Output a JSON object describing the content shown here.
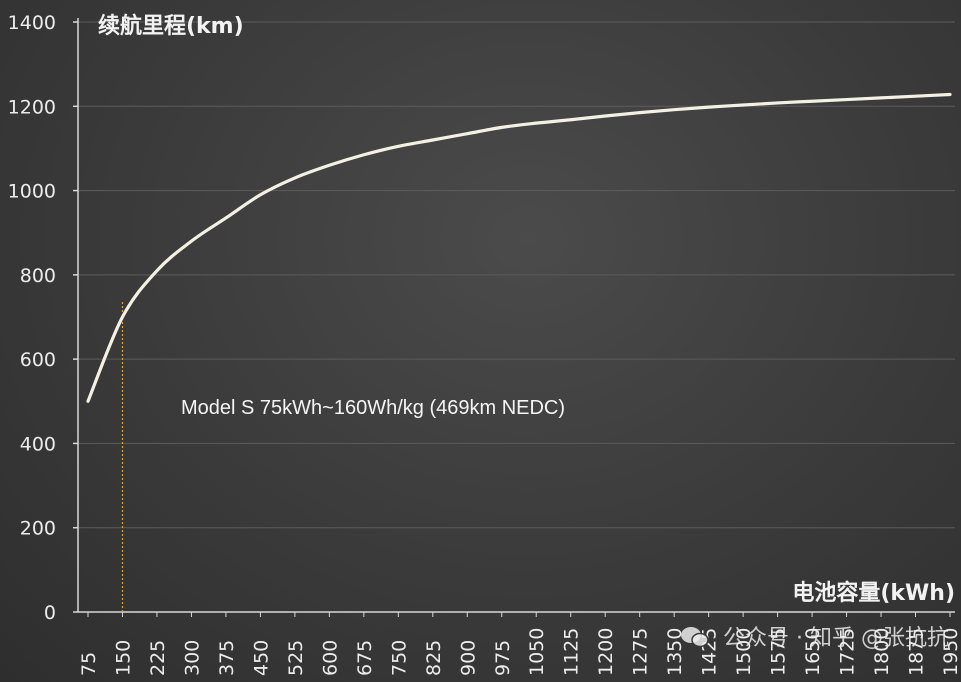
{
  "chart_data": {
    "type": "line",
    "ylabel": "续航里程(km)",
    "xlabel": "电池容量(kWh)",
    "ylim": [
      0,
      1400
    ],
    "yticks": [
      0,
      200,
      400,
      600,
      800,
      1000,
      1200,
      1400
    ],
    "x_categories": [
      75,
      150,
      225,
      300,
      375,
      450,
      525,
      600,
      675,
      750,
      825,
      900,
      975,
      1050,
      1125,
      1200,
      1275,
      1350,
      1425,
      1500,
      1575,
      1650,
      1725,
      1800,
      1875,
      1950
    ],
    "x_tick_labels": [
      "75",
      "150",
      "225",
      "300",
      "375",
      "450",
      "525",
      "600",
      "675",
      "750",
      "825",
      "900",
      "975",
      "1050",
      "1125",
      "1200",
      "1275",
      "1350",
      "1425",
      "1500",
      "1575",
      "1650",
      "1725",
      "1800",
      "1875",
      "1950"
    ],
    "grid": true,
    "series": [
      {
        "color": "#f3f1e3",
        "x": [
          75,
          150,
          225,
          300,
          375,
          450,
          525,
          600,
          675,
          750,
          825,
          900,
          975,
          1050,
          1125,
          1200,
          1275,
          1350,
          1425,
          1500,
          1575,
          1650,
          1725,
          1800,
          1875,
          1950
        ],
        "y": [
          500,
          700,
          810,
          880,
          935,
          990,
          1030,
          1060,
          1085,
          1105,
          1120,
          1135,
          1150,
          1160,
          1168,
          1177,
          1185,
          1192,
          1198,
          1203,
          1208,
          1212,
          1216,
          1220,
          1224,
          1228
        ]
      }
    ],
    "marker_line": {
      "x": 150,
      "color": "#e0a020",
      "style": "dotted"
    },
    "annotation": "Model S 75kWh~160Wh/kg (469km NEDC)"
  },
  "watermark": {
    "text": "公众号 · 知乎 @张抗抗",
    "icon": "wechat-icon"
  }
}
